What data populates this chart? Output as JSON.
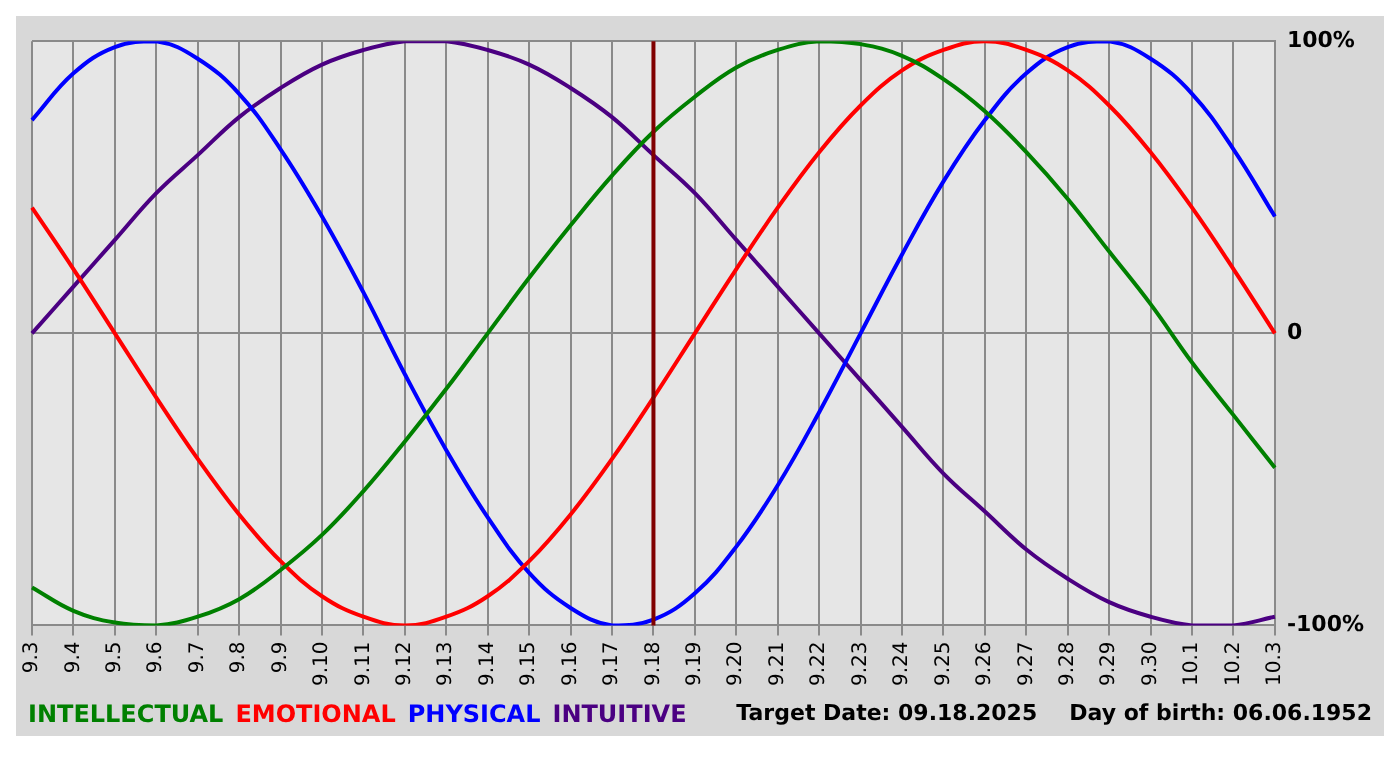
{
  "chart_data": {
    "type": "line",
    "categories": [
      "9.3",
      "9.4",
      "9.5",
      "9.6",
      "9.7",
      "9.8",
      "9.9",
      "9.10",
      "9.11",
      "9.12",
      "9.13",
      "9.14",
      "9.15",
      "9.16",
      "9.17",
      "9.18",
      "9.19",
      "9.20",
      "9.21",
      "9.22",
      "9.23",
      "9.24",
      "9.25",
      "9.26",
      "9.27",
      "9.28",
      "9.29",
      "9.30",
      "10.1",
      "10.2",
      "10.3"
    ],
    "series": [
      {
        "name": "INTELLECTUAL",
        "color": "#008000",
        "values": [
          -87,
          -95,
          -99,
          -100,
          -97,
          -91,
          -81,
          -69,
          -54,
          -37,
          -19,
          0,
          19,
          37,
          54,
          69,
          81,
          91,
          97,
          100,
          99,
          95,
          87,
          76,
          62,
          46,
          28,
          10,
          -10,
          -28,
          -46
        ]
      },
      {
        "name": "EMOTIONAL",
        "color": "#ff0000",
        "values": [
          43,
          22,
          0,
          -22,
          -43,
          -62,
          -78,
          -90,
          -97,
          -100,
          -97,
          -90,
          -78,
          -62,
          -43,
          -22,
          0,
          22,
          43,
          62,
          78,
          90,
          97,
          100,
          97,
          90,
          78,
          62,
          43,
          22,
          0
        ]
      },
      {
        "name": "PHYSICAL",
        "color": "#0000ff",
        "values": [
          73,
          89,
          98,
          100,
          94,
          82,
          63,
          40,
          14,
          -14,
          -40,
          -63,
          -82,
          -94,
          -100,
          -98,
          -89,
          -73,
          -52,
          -27,
          0,
          27,
          52,
          73,
          89,
          98,
          100,
          94,
          82,
          63,
          40
        ]
      },
      {
        "name": "INTUITIVE",
        "color": "#4b0082",
        "values": [
          0,
          16,
          32,
          48,
          61,
          74,
          84,
          92,
          97,
          100,
          100,
          97,
          92,
          84,
          74,
          61,
          48,
          32,
          16,
          0,
          -16,
          -32,
          -48,
          -61,
          -74,
          -84,
          -92,
          -97,
          -100,
          -100,
          -97
        ]
      }
    ],
    "ylim": [
      -100,
      100
    ],
    "yticks": [
      {
        "value": -100,
        "label": "-100%"
      },
      {
        "value": 0,
        "label": "0"
      },
      {
        "value": 100,
        "label": "100%"
      }
    ],
    "ref_lines": [
      {
        "axis": "x",
        "value": "9.18",
        "color": "#800000"
      }
    ],
    "annotations": [
      "Target Date: 09.18.2025",
      "Day of birth: 06.06.1952"
    ],
    "grid": true,
    "legend": "bottom",
    "marker": "none",
    "line_style": "solid"
  }
}
